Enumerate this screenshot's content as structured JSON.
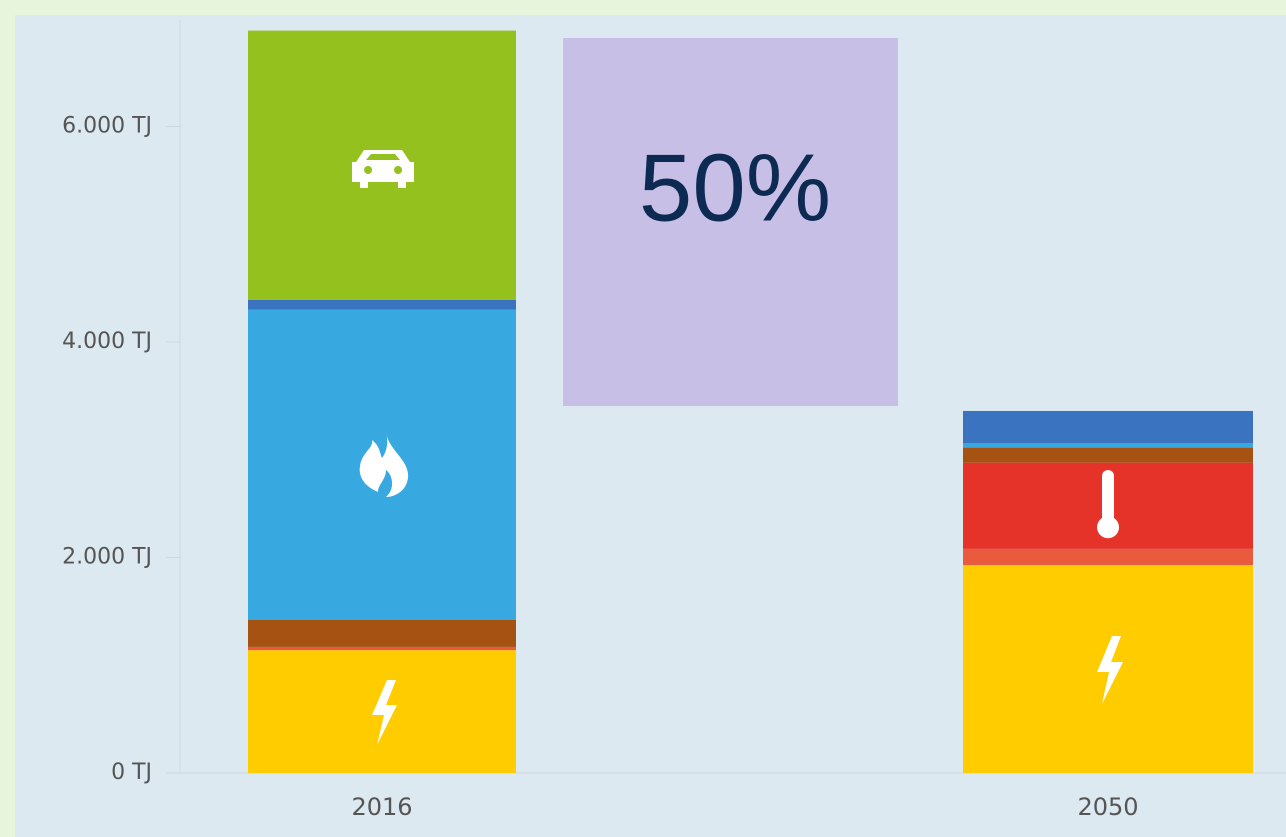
{
  "chart_data": {
    "type": "stacked_bar",
    "categories": [
      "2016",
      "2050"
    ],
    "series": [
      {
        "color": "#ffcc00",
        "values": [
          1140,
          1930
        ]
      },
      {
        "color": "#ea5a3c",
        "values": [
          30,
          150
        ]
      },
      {
        "color": "#e6332a",
        "values": [
          0,
          800
        ]
      },
      {
        "color": "#a65213",
        "values": [
          250,
          140
        ]
      },
      {
        "color": "#37a8e0",
        "values": [
          2880,
          40
        ]
      },
      {
        "color": "#3a73c0",
        "values": [
          90,
          300
        ]
      },
      {
        "color": "#95c11f",
        "values": [
          2500,
          0
        ]
      }
    ],
    "ylim": [
      0,
      7000
    ],
    "yticks": [
      {
        "value": 0,
        "label": "0 TJ"
      },
      {
        "value": 2000,
        "label": "2.000 TJ"
      },
      {
        "value": 4000,
        "label": "4.000 TJ"
      },
      {
        "value": 6000,
        "label": "6.000 TJ"
      }
    ],
    "annotation": "50%"
  }
}
